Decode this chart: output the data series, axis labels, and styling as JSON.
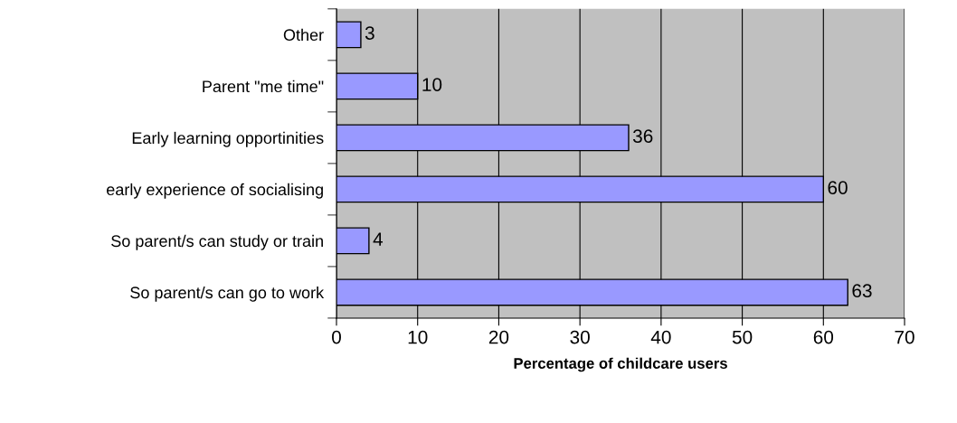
{
  "chart_data": {
    "type": "bar",
    "orientation": "horizontal",
    "categories": [
      "Other",
      "Parent \"me time\"",
      "Early learning opportinities",
      "early experience of socialising",
      "So parent/s can study or train",
      "So parent/s can go to work"
    ],
    "values": [
      3,
      10,
      36,
      60,
      4,
      63
    ],
    "color": "#9999ff",
    "xlabel": "Percentage of childcare users",
    "xlim": [
      0,
      70
    ],
    "xticks": [
      0,
      10,
      20,
      30,
      40,
      50,
      60,
      70
    ],
    "grid": "x",
    "data_labels": true
  }
}
